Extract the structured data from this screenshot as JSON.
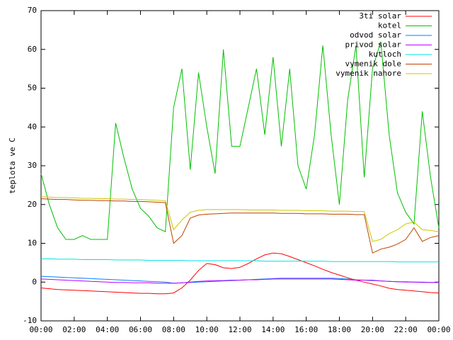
{
  "chart_data": {
    "type": "line",
    "y_label": "teplota ve C",
    "x": [
      0,
      0.5,
      1,
      1.5,
      2,
      2.5,
      3,
      3.5,
      4,
      4.5,
      5,
      5.5,
      6,
      6.5,
      7,
      7.5,
      8,
      8.5,
      9,
      9.5,
      10,
      10.5,
      11,
      11.5,
      12,
      12.5,
      13,
      13.5,
      14,
      14.5,
      15,
      15.5,
      16,
      16.5,
      17,
      17.5,
      18,
      18.5,
      19,
      19.5,
      20,
      20.5,
      21,
      21.5,
      22,
      22.5,
      23,
      23.5,
      24
    ],
    "xlim": [
      0,
      24
    ],
    "xticks": [
      {
        "value": 0,
        "label": "00:00"
      },
      {
        "value": 2,
        "label": "02:00"
      },
      {
        "value": 4,
        "label": "04:00"
      },
      {
        "value": 6,
        "label": "06:00"
      },
      {
        "value": 8,
        "label": "08:00"
      },
      {
        "value": 10,
        "label": "10:00"
      },
      {
        "value": 12,
        "label": "12:00"
      },
      {
        "value": 14,
        "label": "14:00"
      },
      {
        "value": 16,
        "label": "16:00"
      },
      {
        "value": 18,
        "label": "18:00"
      },
      {
        "value": 20,
        "label": "20:00"
      },
      {
        "value": 22,
        "label": "22:00"
      },
      {
        "value": 24,
        "label": "00:00"
      }
    ],
    "ylim": [
      -10,
      70
    ],
    "yticks": [
      -10,
      0,
      10,
      20,
      30,
      40,
      50,
      60,
      70
    ],
    "grid": false,
    "legend": "top-right",
    "series": [
      {
        "name": "3ti solar",
        "color": "#ff0000",
        "values": [
          -1.5,
          -1.7,
          -1.9,
          -2,
          -2.1,
          -2.2,
          -2.3,
          -2.4,
          -2.5,
          -2.6,
          -2.7,
          -2.8,
          -2.9,
          -2.9,
          -3,
          -3,
          -2.8,
          -1.5,
          0.5,
          3,
          4.8,
          4.5,
          3.7,
          3.5,
          3.8,
          4.8,
          6,
          7,
          7.5,
          7.3,
          6.6,
          5.8,
          5,
          4.2,
          3.3,
          2.5,
          1.8,
          1.1,
          0.5,
          0,
          -0.5,
          -1,
          -1.6,
          -1.9,
          -2.1,
          -2.3,
          -2.5,
          -2.7,
          -2.8
        ]
      },
      {
        "name": "kotel",
        "color": "#00c000",
        "values": [
          28,
          20,
          14,
          11,
          11,
          12,
          11,
          11,
          11,
          41,
          32,
          24,
          19,
          17,
          14,
          13,
          45,
          55,
          29,
          54,
          40,
          28,
          60,
          35,
          35,
          45,
          55,
          38,
          58,
          35,
          55,
          30,
          24,
          38,
          61,
          38,
          20,
          47,
          61,
          27,
          55,
          62,
          38,
          23,
          18,
          15,
          44,
          27,
          14
        ]
      },
      {
        "name": "odvod solar",
        "color": "#0080ff",
        "values": [
          1.5,
          1.4,
          1.3,
          1.2,
          1.1,
          1,
          0.9,
          0.8,
          0.7,
          0.6,
          0.5,
          0.4,
          0.3,
          0.2,
          0.1,
          0,
          -0.3,
          -0.2,
          -0.1,
          0,
          0.1,
          0.2,
          0.3,
          0.4,
          0.5,
          0.6,
          0.7,
          0.8,
          0.9,
          1,
          1,
          1,
          1,
          1,
          1,
          1,
          0.9,
          0.8,
          0.6,
          0.5,
          0.4,
          0.3,
          0.2,
          0.1,
          0.1,
          0,
          0,
          -0.1,
          -0.1
        ]
      },
      {
        "name": "privod solar",
        "color": "#c000ff",
        "values": [
          0.8,
          0.7,
          0.6,
          0.5,
          0.4,
          0.3,
          0.2,
          0.1,
          0,
          -0.1,
          -0.1,
          -0.2,
          -0.2,
          -0.2,
          -0.3,
          -0.3,
          -0.3,
          -0.2,
          0,
          0.2,
          0.3,
          0.4,
          0.4,
          0.5,
          0.5,
          0.6,
          0.6,
          0.7,
          0.8,
          0.8,
          0.8,
          0.8,
          0.8,
          0.8,
          0.8,
          0.8,
          0.7,
          0.6,
          0.5,
          0.5,
          0.5,
          0.3,
          0.2,
          0.1,
          0,
          0,
          -0.1,
          -0.1,
          -0.1
        ]
      },
      {
        "name": "kutloch",
        "color": "#00e0e0",
        "values": [
          6,
          6,
          5.9,
          5.9,
          5.9,
          5.8,
          5.8,
          5.8,
          5.8,
          5.7,
          5.7,
          5.7,
          5.7,
          5.6,
          5.6,
          5.6,
          5.6,
          5.6,
          5.5,
          5.5,
          5.5,
          5.5,
          5.5,
          5.5,
          5.5,
          5.5,
          5.5,
          5.4,
          5.4,
          5.4,
          5.4,
          5.4,
          5.4,
          5.4,
          5.4,
          5.3,
          5.3,
          5.3,
          5.3,
          5.3,
          5.3,
          5.3,
          5.3,
          5.2,
          5.2,
          5.2,
          5.2,
          5.2,
          5.2
        ]
      },
      {
        "name": "vymenik dole",
        "color": "#c04000",
        "values": [
          21.5,
          21.4,
          21.3,
          21.3,
          21.2,
          21.1,
          21.1,
          21,
          21,
          20.9,
          20.9,
          20.8,
          20.8,
          20.7,
          20.6,
          20.5,
          10,
          12,
          16.5,
          17.3,
          17.5,
          17.6,
          17.7,
          17.8,
          17.8,
          17.8,
          17.8,
          17.8,
          17.8,
          17.7,
          17.7,
          17.7,
          17.6,
          17.6,
          17.6,
          17.5,
          17.5,
          17.5,
          17.4,
          17.4,
          7.5,
          8.5,
          9,
          9.8,
          11,
          14,
          10.5,
          11.5,
          12
        ]
      },
      {
        "name": "vymenik nahore",
        "color": "#c8c800",
        "values": [
          22,
          21.9,
          21.8,
          21.8,
          21.7,
          21.6,
          21.6,
          21.5,
          21.5,
          21.4,
          21.4,
          21.3,
          21.3,
          21.2,
          21.1,
          21,
          13.5,
          16,
          18,
          18.5,
          18.7,
          18.7,
          18.7,
          18.7,
          18.7,
          18.6,
          18.6,
          18.6,
          18.6,
          18.5,
          18.5,
          18.5,
          18.4,
          18.4,
          18.4,
          18.3,
          18.3,
          18.3,
          18.2,
          18.2,
          10.5,
          11,
          12.5,
          13.5,
          15,
          15.5,
          13.5,
          13.3,
          13
        ]
      }
    ]
  }
}
